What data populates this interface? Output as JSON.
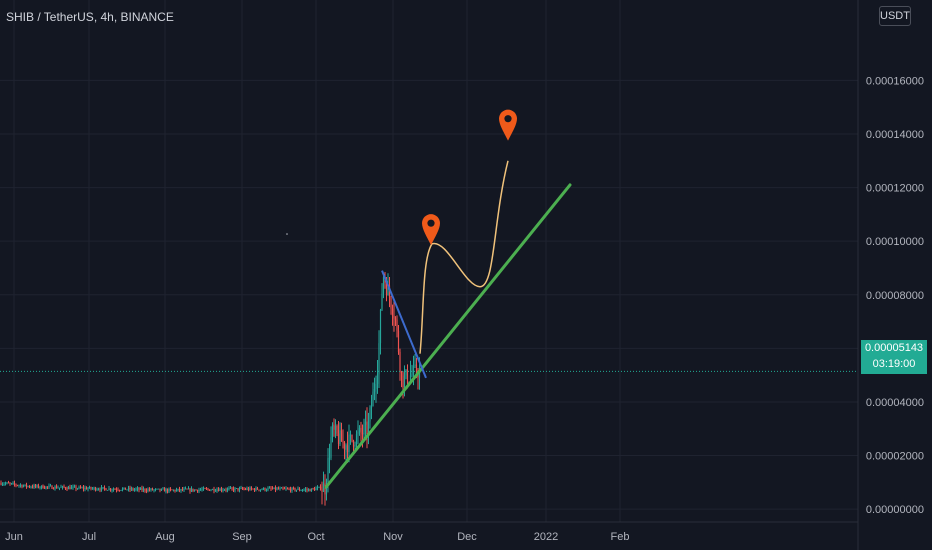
{
  "header": {
    "symbol": "SHIB / TetherUS, 4h, BINANCE",
    "currency": "USDT"
  },
  "last_price": {
    "value": "0.00005143",
    "countdown": "03:19:00"
  },
  "colors": {
    "background": "#131722",
    "grid": "#1f2330",
    "up": "#26a69a",
    "down": "#ef5350",
    "trendline_green": "#4caf50",
    "trendline_blue": "#3d6bce",
    "projection": "#f0c27b",
    "marker": "#f05a1a",
    "price_line": "#22ab94"
  },
  "chart_data": {
    "type": "candlestick",
    "x_tick_labels": [
      "Jun",
      "Jul",
      "Aug",
      "Sep",
      "Oct",
      "Nov",
      "Dec",
      "2022",
      "Feb"
    ],
    "y_tick_labels": [
      "0.00016000",
      "0.00014000",
      "0.00012000",
      "0.00010000",
      "0.00008000",
      "0.00006000",
      "0.00004000",
      "0.00002000",
      "0.00000000"
    ],
    "y_ticks": [
      0.00016,
      0.00014,
      0.00012,
      0.0001,
      8e-05,
      6e-05,
      4e-05,
      2e-05,
      0.0
    ],
    "ylim": [
      -4.8e-06,
      0.00019
    ],
    "last_price": 5.143e-05,
    "price_path": [
      [
        "Jun",
        9.8e-06
      ],
      [
        "Jun",
        8.5e-06
      ],
      [
        "Jul",
        7.8e-06
      ],
      [
        "Jul",
        7.5e-06
      ],
      [
        "Aug",
        7e-06
      ],
      [
        "Aug",
        7.4e-06
      ],
      [
        "Sep",
        7.5e-06
      ],
      [
        "Sep",
        7.2e-06
      ],
      [
        "Oct",
        8.2e-06
      ],
      [
        "Oct",
        2.9e-05
      ],
      [
        "Oct",
        2.4e-05
      ],
      [
        "Oct",
        3e-05
      ],
      [
        "Oct",
        5.5e-05
      ],
      [
        "Oct",
        8.8e-05
      ],
      [
        "Nov",
        7.2e-05
      ],
      [
        "Nov",
        4.8e-05
      ],
      [
        "Nov",
        5.2e-05
      ]
    ],
    "annotations": {
      "support_line": {
        "from": [
          "Oct",
          8.2e-06
        ],
        "to": [
          "2022",
          0.000121
        ]
      },
      "wedge_line": {
        "from": [
          "Oct",
          8.9e-05
        ],
        "to": [
          "Nov",
          4.9e-05
        ]
      },
      "projection_path": [
        [
          "Nov",
          5.8e-05
        ],
        [
          "Nov",
          9.9e-05
        ],
        [
          "Dec",
          8.3e-05
        ],
        [
          "Dec",
          0.00013
        ]
      ],
      "markers": [
        [
          "Nov",
          0.0001
        ],
        [
          "Dec",
          0.000139
        ]
      ]
    }
  }
}
